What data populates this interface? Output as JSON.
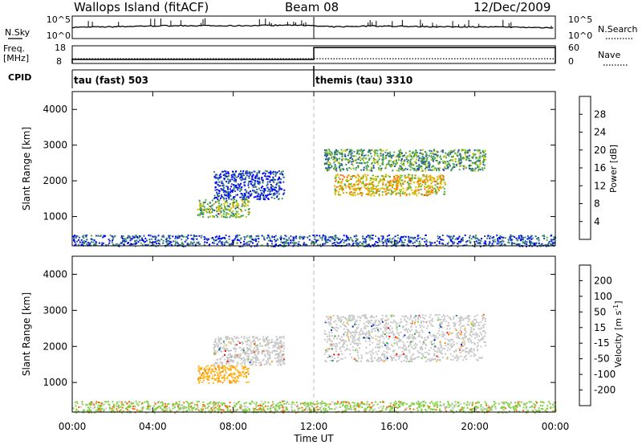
{
  "header": {
    "site": "Wallops Island (fitACF)",
    "beam": "Beam 08",
    "date": "12/Dec/2009"
  },
  "strip_labels": {
    "nsky": "N.Sky",
    "nsearch": "N.Search",
    "freq": "Freq.",
    "freq_unit": "[MHz]",
    "nave": "Nave",
    "cpid": "CPID",
    "nsky_ticks": [
      "10^5",
      "10^0"
    ],
    "nsearch_ticks": [
      "10^5",
      "10^0"
    ],
    "freq_ticks": [
      "18",
      "8"
    ],
    "nave_ticks": [
      "60",
      "0"
    ]
  },
  "cpid_modes": [
    {
      "label": "tau (fast) 503"
    },
    {
      "label": "themis (tau) 3310"
    }
  ],
  "colors": {
    "power": [
      "#0000ff",
      "#2050a8",
      "#3a8a6a",
      "#50b040",
      "#c8c800",
      "#f0a000",
      "#ff6000",
      "#ff0000"
    ],
    "velocity": [
      "#ff0000",
      "#ff6000",
      "#ff9000",
      "#ffb820",
      "#c8c8c8",
      "#80d040",
      "#40a030",
      "#208080",
      "#0030c0"
    ],
    "grey": "#c8c8c8",
    "dash": "#bbbbbb"
  },
  "chart_data": [
    {
      "type": "line",
      "title": "N.Sky / N.Search",
      "x": [
        "00:00",
        "02:00",
        "04:00",
        "06:00",
        "08:00",
        "10:00",
        "11:50",
        "12:00",
        "14:00",
        "16:00",
        "18:00",
        "20:00",
        "22:00",
        "24:00"
      ],
      "series": [
        {
          "name": "N.Sky",
          "values": [
            2.5,
            2.6,
            2.8,
            2.9,
            2.8,
            2.9,
            3.0,
            2.6,
            2.8,
            2.7,
            2.6,
            2.6,
            2.5,
            2.4
          ]
        }
      ],
      "ylim": [
        0,
        5
      ]
    },
    {
      "type": "line",
      "title": "Freq. / Nave",
      "x": [
        "00:00",
        "12:00",
        "12:00",
        "24:00"
      ],
      "series": [
        {
          "name": "Freq.",
          "values": [
            10.3,
            10.3,
            17.0,
            17.0
          ]
        },
        {
          "name": "Nave",
          "values": [
            16,
            16,
            16,
            16
          ]
        }
      ],
      "ylim": [
        8,
        18
      ]
    },
    {
      "type": "heatmap",
      "title": "Power",
      "xlabel": "Time UT",
      "ylabel": "Slant Range [km]",
      "x_ticks": [
        "00:00",
        "04:00",
        "08:00",
        "12:00",
        "16:00",
        "20:00",
        "00:00"
      ],
      "y_ticks": [
        1000,
        2000,
        3000,
        4000
      ],
      "xlim_hours": [
        0,
        24
      ],
      "ylim": [
        180,
        4500
      ],
      "colorbar": {
        "label": "Power [dB]",
        "ticks": [
          4,
          8,
          12,
          16,
          20,
          24,
          28
        ]
      },
      "scatter_regions": [
        {
          "t_start": 6.2,
          "t_end": 8.8,
          "r_start": 1000,
          "r_end": 1500,
          "value": 16
        },
        {
          "t_start": 7.0,
          "t_end": 10.5,
          "r_start": 1500,
          "r_end": 2300,
          "value": 6
        },
        {
          "t_start": 12.5,
          "t_end": 20.5,
          "r_start": 2300,
          "r_end": 2900,
          "value": 14
        },
        {
          "t_start": 13.0,
          "t_end": 18.5,
          "r_start": 1600,
          "r_end": 2200,
          "value": 22
        },
        {
          "t_start": 0,
          "t_end": 24,
          "r_start": 180,
          "r_end": 500,
          "value": 8
        }
      ]
    },
    {
      "type": "heatmap",
      "title": "Velocity",
      "xlabel": "Time UT",
      "ylabel": "Slant Range [km]",
      "x_ticks": [
        "00:00",
        "04:00",
        "08:00",
        "12:00",
        "16:00",
        "20:00",
        "00:00"
      ],
      "y_ticks": [
        1000,
        2000,
        3000,
        4000
      ],
      "xlim_hours": [
        0,
        24
      ],
      "ylim": [
        180,
        4500
      ],
      "colorbar": {
        "label": "Velocity [m s^-1]",
        "ticks": [
          -200,
          -100,
          -50,
          -15,
          15,
          50,
          100,
          200
        ]
      },
      "scatter_regions": [
        {
          "t_start": 6.2,
          "t_end": 8.8,
          "r_start": 1000,
          "r_end": 1500,
          "value": -40
        },
        {
          "t_start": 7.0,
          "t_end": 10.5,
          "r_start": 1500,
          "r_end": 2300,
          "value": 0
        },
        {
          "t_start": 12.5,
          "t_end": 20.5,
          "r_start": 1600,
          "r_end": 2900,
          "value": 0
        },
        {
          "t_start": 0,
          "t_end": 24,
          "r_start": 180,
          "r_end": 500,
          "value": 30
        }
      ]
    }
  ],
  "axes": {
    "x_ticks": [
      "00:00",
      "04:00",
      "08:00",
      "12:00",
      "16:00",
      "20:00",
      "00:00"
    ],
    "xlabel": "Time UT",
    "ylabel": "Slant Range [km]",
    "y_ticks": [
      "1000",
      "2000",
      "3000",
      "4000"
    ],
    "power_label": "Power [dB]",
    "power_ticks": [
      "4",
      "8",
      "12",
      "16",
      "20",
      "24",
      "28"
    ],
    "velocity_label": "Velocity [m s",
    "velocity_sup": "-1",
    "velocity_tail": "]",
    "velocity_ticks": [
      "-200",
      "-100",
      "-50",
      "-15",
      "15",
      "50",
      "100",
      "200"
    ]
  }
}
